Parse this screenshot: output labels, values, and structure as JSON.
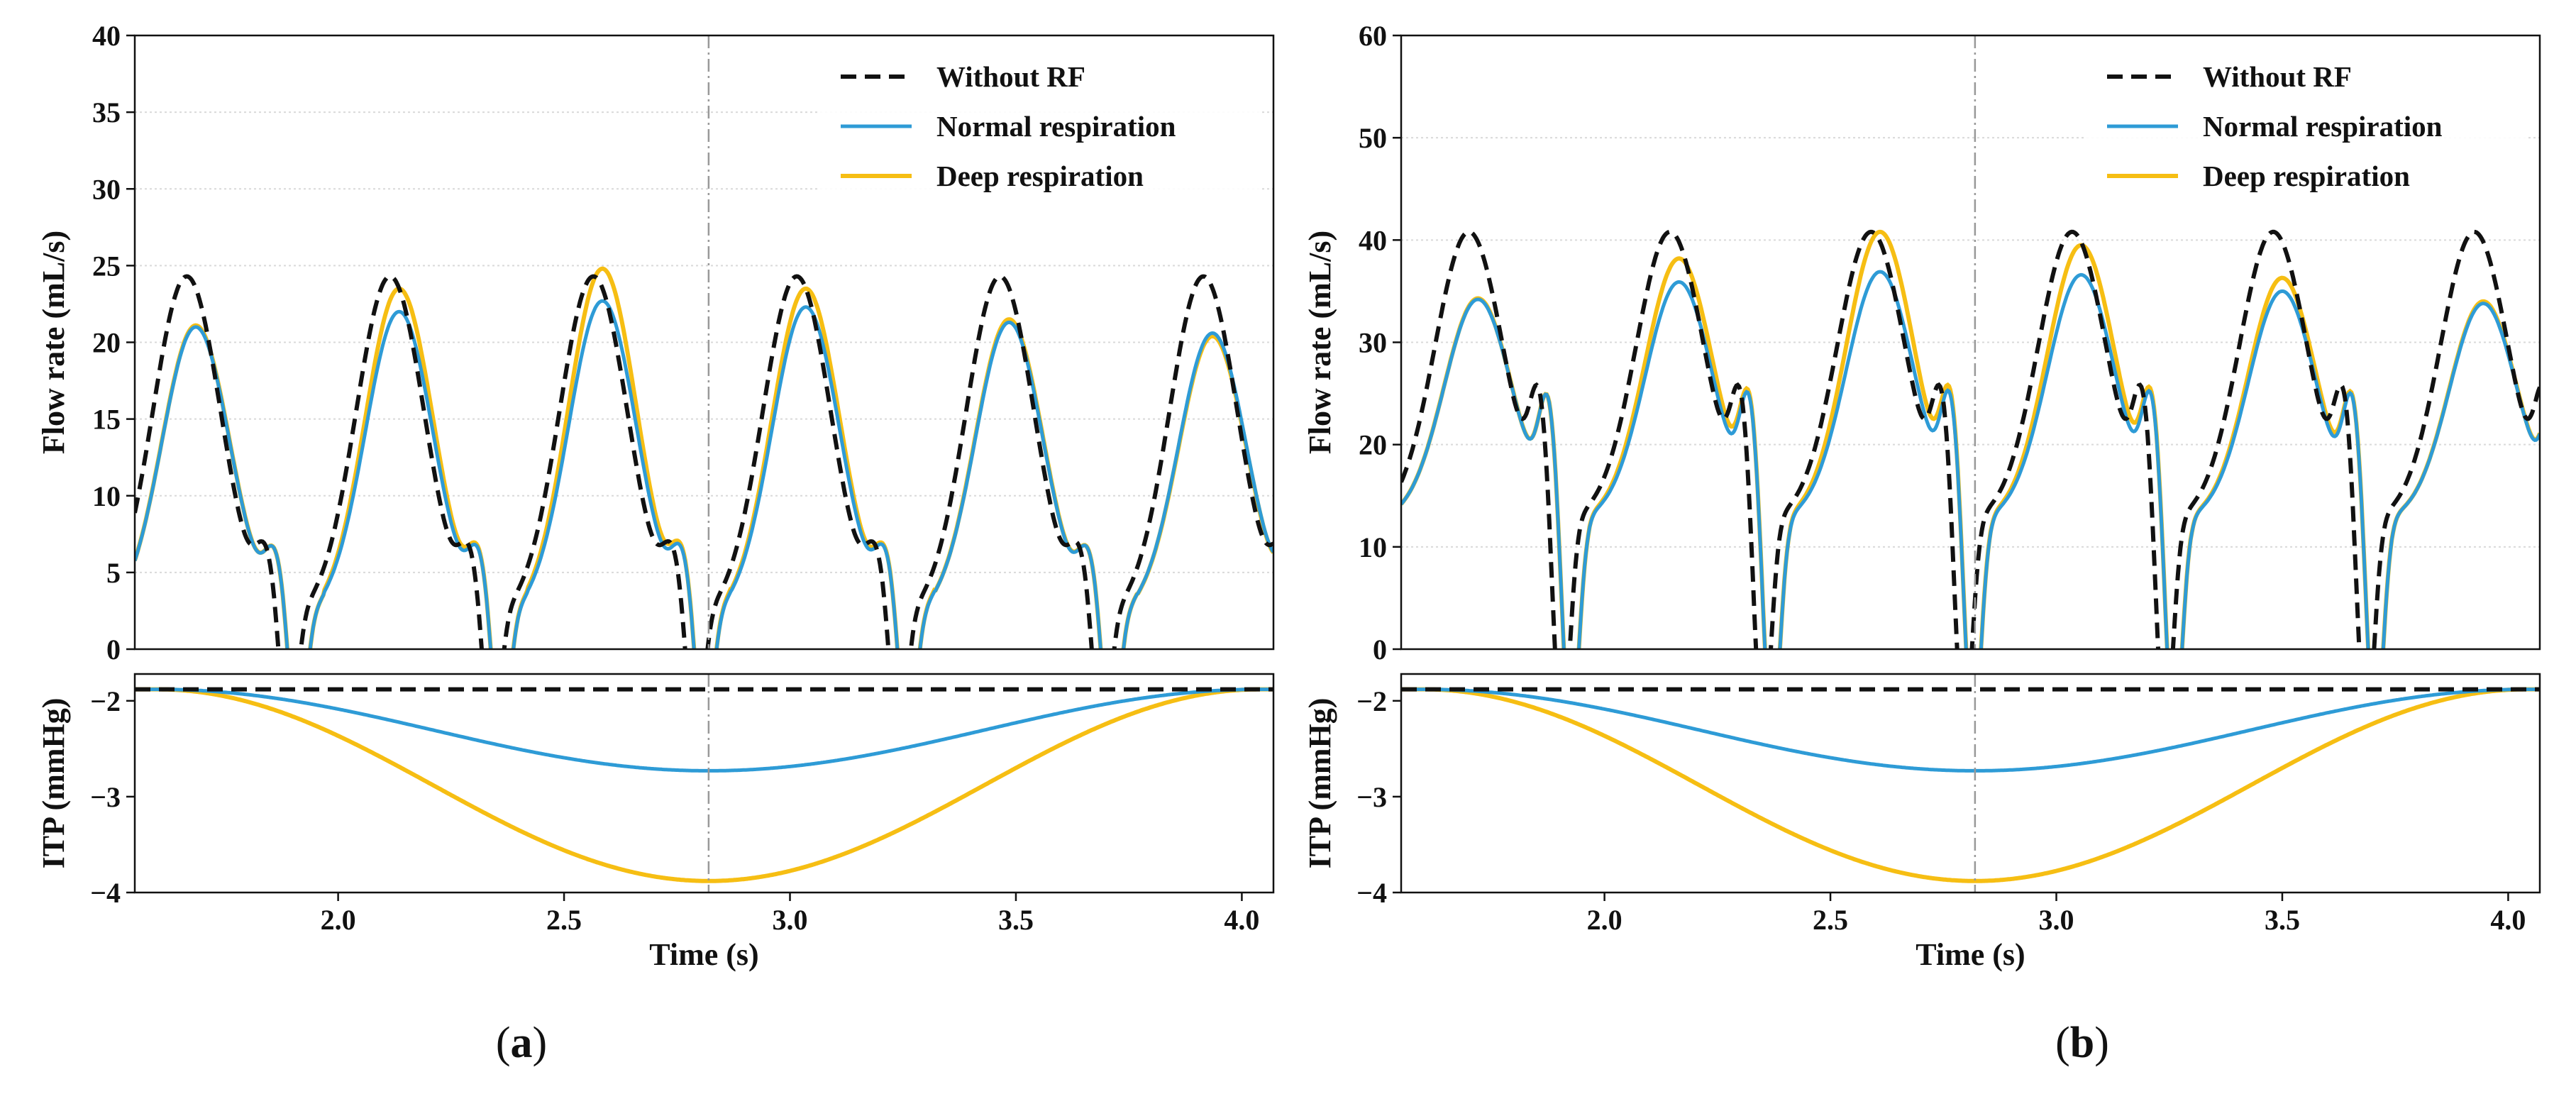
{
  "colors": {
    "without_rf": "#111111",
    "normal": "#2e9bd6",
    "deep": "#f6be13",
    "grid": "#d9d9d9",
    "marker": "#999999"
  },
  "chart_data": [
    {
      "panel_label": "a",
      "type": "line",
      "xlabel": "Time (s)",
      "xlim": [
        1.55,
        4.07
      ],
      "x_ticks": [
        "2.0",
        "2.5",
        "3.0",
        "3.5",
        "4.0"
      ],
      "x_tick_values": [
        2.0,
        2.5,
        3.0,
        3.5,
        4.0
      ],
      "marker_x": 2.82,
      "legend": {
        "position": "top-right",
        "entries": [
          "Without RF",
          "Normal respiration",
          "Deep respiration"
        ]
      },
      "flow": {
        "ylabel": "Flow rate (mL/s)",
        "ylim": [
          0,
          40
        ],
        "y_ticks": [
          "0",
          "5",
          "10",
          "15",
          "20",
          "25",
          "30",
          "35",
          "40"
        ],
        "y_tick_values": [
          0,
          5,
          10,
          15,
          20,
          25,
          30,
          35,
          40
        ],
        "grid": true,
        "cycle_start": 1.5,
        "period": 0.45,
        "without_rf_cycle": {
          "base": 2.0,
          "peak_t": 0.165,
          "peak": 24.3,
          "peak_w": 0.075,
          "notch_t": 0.34,
          "notch": 3.8,
          "notch_w": 0.022,
          "dip_t": 0.39,
          "dip": -9,
          "dip_w": 0.018
        },
        "normal_peaks": [
          21.0,
          22.0,
          22.7,
          22.3,
          21.3,
          20.6
        ],
        "deep_peaks": [
          21.1,
          23.5,
          24.8,
          23.5,
          21.5,
          20.4
        ],
        "resp_delay": 0.02
      },
      "itp": {
        "ylabel": "ITP (mmHg)",
        "ylim": [
          -4,
          -1.72
        ],
        "y_ticks": [
          "−2",
          "−3",
          "−4"
        ],
        "y_tick_values": [
          -2,
          -3,
          -4
        ],
        "baseline": -1.88,
        "normal_min": -2.73,
        "deep_min": -3.88,
        "min_t": 2.82,
        "half_period": 1.22
      }
    },
    {
      "panel_label": "b",
      "type": "line",
      "xlabel": "Time (s)",
      "xlim": [
        1.55,
        4.07
      ],
      "x_ticks": [
        "2.0",
        "2.5",
        "3.0",
        "3.5",
        "4.0"
      ],
      "x_tick_values": [
        2.0,
        2.5,
        3.0,
        3.5,
        4.0
      ],
      "marker_x": 2.82,
      "legend": {
        "position": "top-right",
        "entries": [
          "Without RF",
          "Normal respiration",
          "Deep respiration"
        ]
      },
      "flow": {
        "ylabel": "Flow rate (mL/s)",
        "ylim": [
          0,
          60
        ],
        "y_ticks": [
          "0",
          "10",
          "20",
          "30",
          "40",
          "50",
          "60"
        ],
        "y_tick_values": [
          0,
          10,
          20,
          30,
          40,
          50,
          60
        ],
        "grid": true,
        "cycle_start": 1.5,
        "period": 0.445,
        "without_rf_cycle": {
          "base": 12.5,
          "peak_t": 0.2,
          "peak": 40.8,
          "peak_w": 0.075,
          "notch_t": 0.355,
          "notch": 12.5,
          "notch_w": 0.02,
          "dip_t": 0.405,
          "dip": -22,
          "dip_w": 0.018
        },
        "normal_peaks": [
          34.2,
          35.9,
          36.9,
          36.6,
          35.0,
          33.8
        ],
        "deep_peaks": [
          34.3,
          38.2,
          40.8,
          39.5,
          36.3,
          34.0
        ],
        "resp_delay": 0.02
      },
      "itp": {
        "ylabel": "ITP (mmHg)",
        "ylim": [
          -4,
          -1.72
        ],
        "y_ticks": [
          "−2",
          "−3",
          "−4"
        ],
        "y_tick_values": [
          -2,
          -3,
          -4
        ],
        "baseline": -1.88,
        "normal_min": -2.73,
        "deep_min": -3.88,
        "min_t": 2.82,
        "half_period": 1.22
      }
    }
  ]
}
